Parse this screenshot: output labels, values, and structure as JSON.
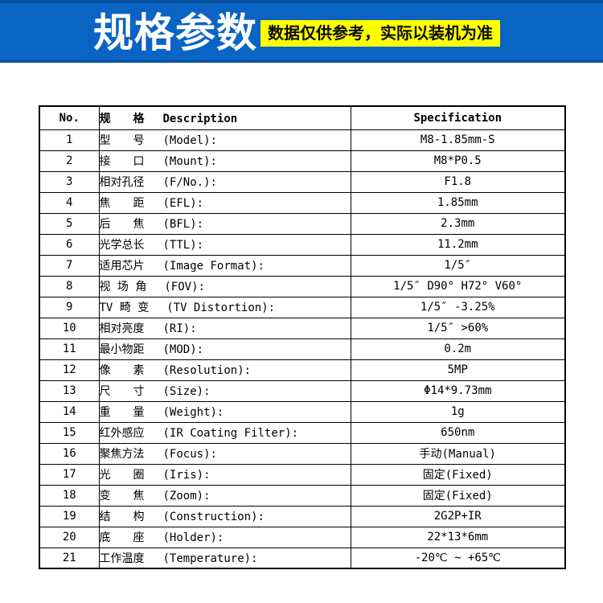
{
  "banner": {
    "title": "规格参数",
    "badge": "数据仅供参考，实际以装机为准",
    "colors": {
      "background": "#0a64c4",
      "edge": "#05509e",
      "title_text": "#ffffff",
      "badge_background": "#ffff00",
      "badge_text": "#0a0a0a"
    }
  },
  "table": {
    "columns": {
      "no": "No.",
      "desc_cn": "规　　格",
      "desc_en": "Description",
      "spec": "Specification"
    },
    "rows": [
      {
        "no": "1",
        "cn": "型　　号",
        "en": "(Model):",
        "spec": "M8-1.85mm-S"
      },
      {
        "no": "2",
        "cn": "接　　口",
        "en": "(Mount):",
        "spec": "M8*P0.5"
      },
      {
        "no": "3",
        "cn": "相对孔径",
        "en": "(F/No.):",
        "spec": "F1.8"
      },
      {
        "no": "4",
        "cn": "焦　　距",
        "en": "(EFL):",
        "spec": "1.85mm"
      },
      {
        "no": "5",
        "cn": "后　　焦",
        "en": "(BFL):",
        "spec": "2.3mm"
      },
      {
        "no": "6",
        "cn": "光学总长",
        "en": "(TTL):",
        "spec": "11.2mm"
      },
      {
        "no": "7",
        "cn": "适用芯片",
        "en": "(Image Format):",
        "spec": "1/5″"
      },
      {
        "no": "8",
        "cn": "视 场 角",
        "en": "(FOV):",
        "spec": "1/5″ D90° H72° V60°"
      },
      {
        "no": "9",
        "cn": "TV 畸 变",
        "en": "(TV Distortion):",
        "spec": "1/5″ -3.25%"
      },
      {
        "no": "10",
        "cn": "相对亮度",
        "en": "(RI):",
        "spec": "1/5″ >60%"
      },
      {
        "no": "11",
        "cn": "最小物距",
        "en": "(MOD):",
        "spec": "0.2m"
      },
      {
        "no": "12",
        "cn": "像　　素",
        "en": "(Resolution):",
        "spec": "5MP"
      },
      {
        "no": "13",
        "cn": "尺　　寸",
        "en": "(Size):",
        "spec": "Φ14*9.73mm"
      },
      {
        "no": "14",
        "cn": "重　　量",
        "en": "(Weight):",
        "spec": "1g"
      },
      {
        "no": "15",
        "cn": "红外感应",
        "en": "(IR Coating Filter):",
        "spec": "650nm"
      },
      {
        "no": "16",
        "cn": "聚焦方法",
        "en": "(Focus):",
        "spec": "手动(Manual)"
      },
      {
        "no": "17",
        "cn": "光　　圈",
        "en": "(Iris):",
        "spec": "固定(Fixed)"
      },
      {
        "no": "18",
        "cn": "变　　焦",
        "en": "(Zoom):",
        "spec": "固定(Fixed)"
      },
      {
        "no": "19",
        "cn": "结　　构",
        "en": "(Construction):",
        "spec": "2G2P+IR"
      },
      {
        "no": "20",
        "cn": "底　　座",
        "en": "(Holder):",
        "spec": "22*13*6mm"
      },
      {
        "no": "21",
        "cn": "工作温度",
        "en": "(Temperature):",
        "spec": "-20℃ ~ +65℃"
      }
    ]
  }
}
